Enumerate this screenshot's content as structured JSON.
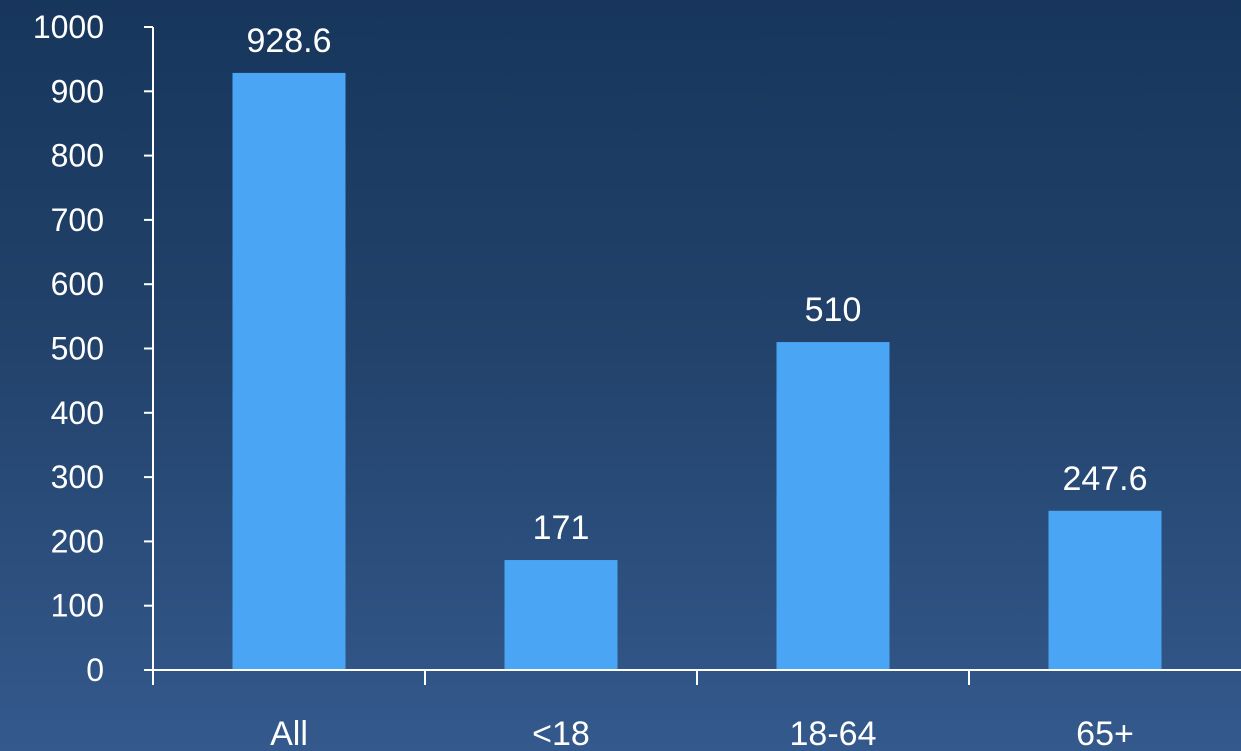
{
  "chart_data": {
    "type": "bar",
    "categories": [
      "All",
      "<18",
      "18-64",
      "65+"
    ],
    "values": [
      928.6,
      171,
      510,
      247.6
    ],
    "data_labels": [
      "928.6",
      "171",
      "510",
      "247.6"
    ],
    "title": "",
    "xlabel": "",
    "ylabel": "",
    "ylim": [
      0,
      1000
    ],
    "yticks": [
      0,
      100,
      200,
      300,
      400,
      500,
      600,
      700,
      800,
      900,
      1000
    ],
    "grid": false,
    "legend": "none",
    "bar_color": "#4aa6f4"
  }
}
